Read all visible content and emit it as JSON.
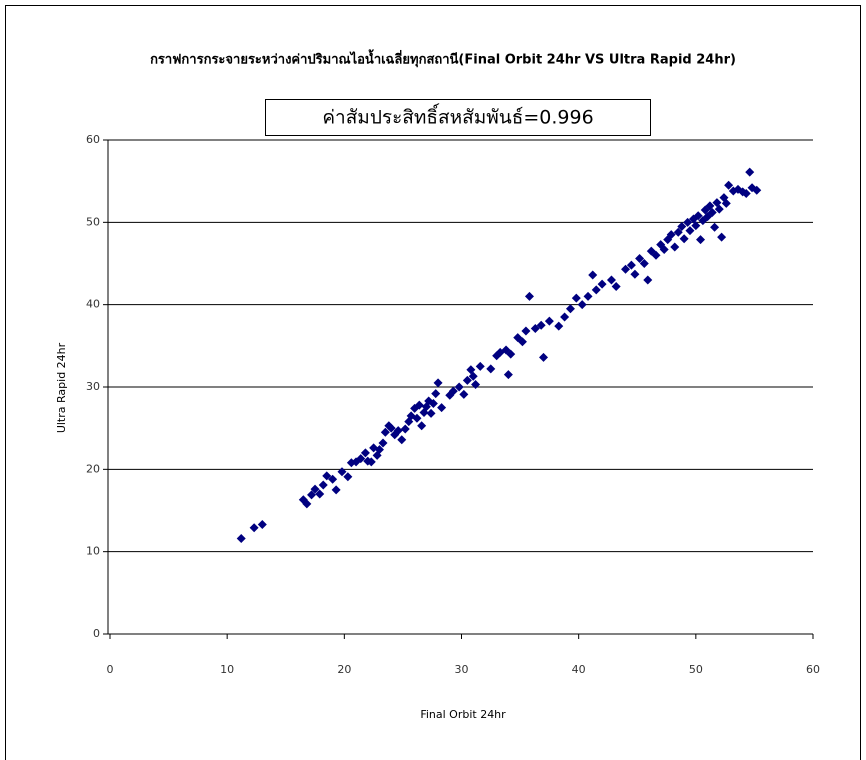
{
  "chart_data": {
    "type": "scatter",
    "title": "กราฟการกระจายระหว่างค่าปริมาณไอน้ำเฉลี่ยทุกสถานี(Final Orbit 24hr VS Ultra Rapid 24hr)",
    "annotation": "ค่าสัมประสิทธิ์สหสัมพันธ์=0.996",
    "x_label": "Final Orbit 24hr",
    "y_label": "Ultra Rapid 24hr",
    "color": "#000080",
    "grid": true,
    "xlim": [
      0,
      60
    ],
    "ylim": [
      0,
      60
    ],
    "xticks": [
      0,
      10,
      20,
      30,
      40,
      50,
      60
    ],
    "yticks": [
      0,
      10,
      20,
      30,
      40,
      50,
      60
    ],
    "x": [
      11.2,
      12.3,
      13.0,
      16.5,
      16.8,
      17.2,
      17.5,
      17.9,
      18.2,
      18.5,
      19.0,
      19.3,
      19.8,
      20.3,
      20.6,
      21.0,
      21.4,
      21.8,
      22.0,
      22.3,
      22.5,
      22.8,
      23.0,
      23.3,
      23.5,
      23.8,
      24.0,
      24.3,
      24.6,
      24.9,
      25.2,
      25.5,
      25.7,
      26.0,
      26.2,
      26.4,
      26.6,
      26.8,
      27.0,
      27.2,
      27.4,
      27.6,
      27.8,
      28.0,
      28.3,
      29.0,
      29.3,
      29.8,
      30.2,
      30.5,
      30.8,
      31.0,
      31.2,
      31.6,
      32.5,
      33.0,
      33.3,
      33.8,
      34.2,
      34.0,
      34.8,
      35.2,
      35.5,
      35.8,
      36.3,
      36.8,
      37.0,
      37.5,
      38.3,
      38.8,
      39.3,
      39.8,
      40.3,
      40.8,
      41.2,
      41.5,
      42.0,
      42.8,
      43.2,
      44.0,
      44.5,
      44.8,
      45.2,
      45.6,
      45.9,
      46.2,
      46.6,
      47.0,
      47.3,
      47.6,
      47.9,
      48.2,
      48.5,
      48.8,
      49.0,
      49.3,
      49.5,
      49.8,
      50.0,
      50.2,
      50.4,
      50.6,
      50.8,
      51.0,
      51.2,
      51.4,
      51.6,
      51.8,
      52.0,
      52.2,
      52.4,
      52.6,
      52.8,
      53.2,
      53.6,
      54.0,
      54.3,
      54.6,
      54.8,
      55.2
    ],
    "y": [
      11.6,
      12.9,
      13.3,
      16.3,
      15.8,
      16.9,
      17.6,
      17.0,
      18.1,
      19.2,
      18.8,
      17.5,
      19.7,
      19.1,
      20.8,
      20.9,
      21.3,
      22.0,
      21.0,
      20.9,
      22.6,
      21.7,
      22.4,
      23.2,
      24.5,
      25.3,
      25.0,
      24.2,
      24.7,
      23.6,
      24.9,
      25.8,
      26.5,
      27.4,
      26.2,
      27.8,
      25.3,
      26.9,
      27.6,
      28.3,
      26.8,
      28.0,
      29.2,
      30.5,
      27.5,
      29.0,
      29.5,
      30.0,
      29.1,
      30.8,
      32.1,
      31.3,
      30.3,
      32.5,
      32.2,
      33.8,
      34.2,
      34.5,
      34.0,
      31.5,
      36.0,
      35.5,
      36.8,
      41.0,
      37.1,
      37.5,
      33.6,
      38.0,
      37.4,
      38.5,
      39.5,
      40.8,
      40.0,
      41.0,
      43.6,
      41.8,
      42.5,
      43.0,
      42.2,
      44.3,
      44.8,
      43.7,
      45.6,
      45.0,
      43.0,
      46.5,
      46.0,
      47.3,
      46.7,
      47.9,
      48.5,
      47.0,
      48.8,
      49.5,
      48.0,
      50.0,
      49.0,
      50.4,
      49.6,
      50.8,
      47.9,
      50.2,
      51.5,
      50.7,
      52.0,
      51.2,
      49.4,
      52.4,
      51.6,
      48.2,
      53.0,
      52.3,
      54.5,
      53.8,
      54.0,
      53.7,
      53.5,
      56.1,
      54.2,
      53.9
    ]
  }
}
